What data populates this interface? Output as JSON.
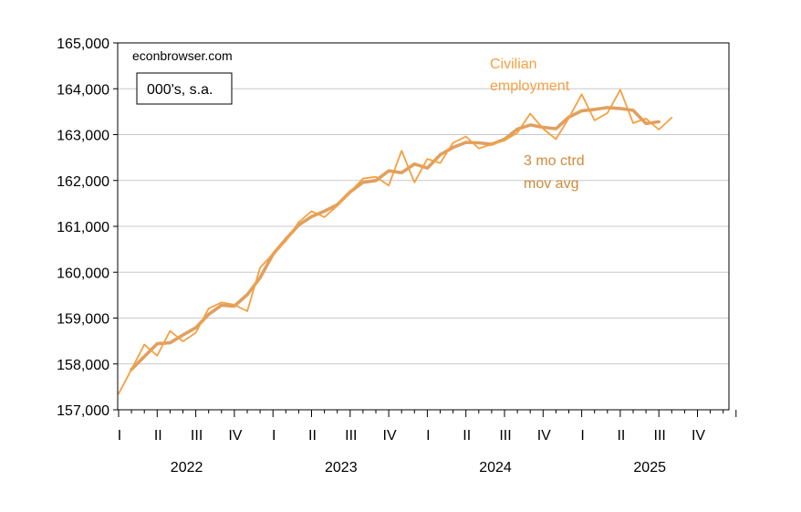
{
  "chart_data": {
    "type": "line",
    "source_text": "econbrowser.com",
    "units_label": "000's, s.a.",
    "ylim": [
      157000,
      165000
    ],
    "y_ticks": [
      157000,
      158000,
      159000,
      160000,
      161000,
      162000,
      163000,
      164000,
      165000
    ],
    "y_tick_labels": [
      "157,000",
      "158,000",
      "159,000",
      "160,000",
      "161,000",
      "162,000",
      "163,000",
      "164,000",
      "165,000"
    ],
    "grid": true,
    "x_quarters": [
      "I",
      "II",
      "III",
      "IV",
      "I",
      "II",
      "III",
      "IV",
      "I",
      "II",
      "III",
      "IV",
      "I",
      "II",
      "III",
      "IV"
    ],
    "x_years": [
      "2022",
      "2023",
      "2024",
      "2025"
    ],
    "months": [
      "2022-01",
      "2022-02",
      "2022-03",
      "2022-04",
      "2022-05",
      "2022-06",
      "2022-07",
      "2022-08",
      "2022-09",
      "2022-10",
      "2022-11",
      "2022-12",
      "2023-01",
      "2023-02",
      "2023-03",
      "2023-04",
      "2023-05",
      "2023-06",
      "2023-07",
      "2023-08",
      "2023-09",
      "2023-10",
      "2023-11",
      "2023-12",
      "2024-01",
      "2024-02",
      "2024-03",
      "2024-04",
      "2024-05",
      "2024-06",
      "2024-07",
      "2024-08",
      "2024-09",
      "2024-10",
      "2024-11",
      "2024-12",
      "2025-01",
      "2025-02",
      "2025-03",
      "2025-04",
      "2025-05",
      "2025-06",
      "2025-07",
      "2025-08"
    ],
    "series": [
      {
        "name": "Civilian employment",
        "color": "#f5a042",
        "values": [
          157350,
          157880,
          158420,
          158180,
          158720,
          158490,
          158680,
          159210,
          159340,
          159290,
          159150,
          160100,
          160400,
          160680,
          161090,
          161330,
          161200,
          161450,
          161750,
          162040,
          162080,
          161890,
          162650,
          161960,
          162470,
          162380,
          162820,
          162960,
          162700,
          162790,
          162870,
          163040,
          163460,
          163130,
          162900,
          163360,
          163880,
          163310,
          163470,
          163980,
          163250,
          163350,
          163110,
          163370
        ]
      },
      {
        "name": "3 mo ctrd mov avg",
        "color": "#e0a060",
        "values": [
          null,
          157880,
          158160,
          158440,
          158460,
          158630,
          158790,
          159080,
          159280,
          159260,
          159510,
          159880,
          160390,
          160720,
          161030,
          161210,
          161330,
          161470,
          161750,
          161960,
          162000,
          162210,
          162170,
          162360,
          162270,
          162560,
          162720,
          162830,
          162820,
          162790,
          162900,
          163120,
          163210,
          163160,
          163130,
          163380,
          163520,
          163550,
          163590,
          163570,
          163530,
          163240,
          163280,
          null
        ]
      }
    ]
  }
}
